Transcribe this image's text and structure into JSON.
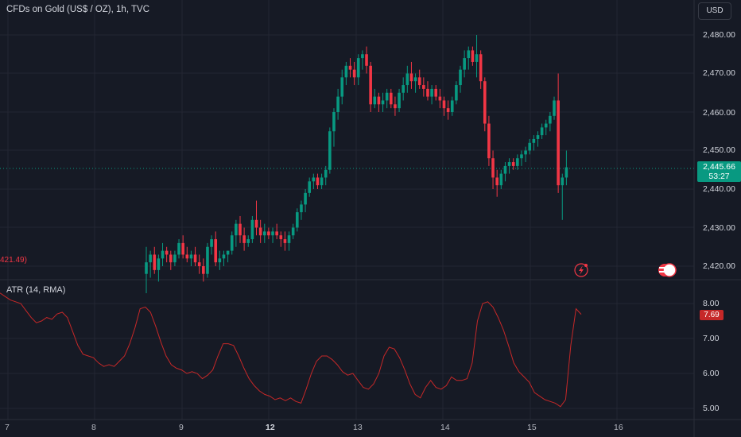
{
  "header": {
    "title": "CFDs on Gold (US$ / OZ), 1h, TVC",
    "currency_button": "USD"
  },
  "price_axis": {
    "ticks": [
      "2,480.00",
      "2,470.00",
      "2,460.00",
      "2,450.00",
      "2,440.00",
      "2,430.00",
      "2,420.00"
    ]
  },
  "last_price": {
    "value": "2,445.66",
    "countdown": "53:27"
  },
  "offscreen_label": "421.49)",
  "indicator": {
    "title": "ATR (14, RMA)",
    "ticks": [
      "8.00",
      "7.00",
      "6.00",
      "5.00"
    ],
    "current_value": "7.69"
  },
  "time_axis": {
    "labels": [
      "7",
      "8",
      "9",
      "12",
      "13",
      "14",
      "15",
      "16"
    ]
  },
  "colors": {
    "up": "#089981",
    "down": "#f23645",
    "atr_line": "#c62828",
    "background": "#161a25"
  },
  "icons": [
    "lightning-event-icon",
    "us-flag-event-icon"
  ],
  "chart_data": [
    {
      "type": "candlestick",
      "title": "CFDs on Gold (US$ / OZ), 1h, TVC",
      "yrange": [
        2417,
        2483
      ],
      "candles": [
        [
          2418,
          2425,
          2413,
          2421
        ],
        [
          2421,
          2424,
          2417,
          2423
        ],
        [
          2423,
          2425,
          2418,
          2419
        ],
        [
          2419,
          2423,
          2416,
          2422
        ],
        [
          2422,
          2426,
          2420,
          2424
        ],
        [
          2424,
          2425,
          2421,
          2423
        ],
        [
          2423,
          2424,
          2419,
          2421
        ],
        [
          2421,
          2424,
          2420,
          2423
        ],
        [
          2423,
          2427,
          2422,
          2426
        ],
        [
          2426,
          2428,
          2422,
          2423
        ],
        [
          2423,
          2425,
          2421,
          2422
        ],
        [
          2422,
          2424,
          2420,
          2423
        ],
        [
          2423,
          2425,
          2420,
          2421
        ],
        [
          2421,
          2423,
          2418,
          2420
        ],
        [
          2420,
          2422,
          2416,
          2418
        ],
        [
          2418,
          2426,
          2417,
          2425
        ],
        [
          2425,
          2428,
          2423,
          2427
        ],
        [
          2427,
          2429,
          2420,
          2421
        ],
        [
          2421,
          2424,
          2419,
          2422
        ],
        [
          2422,
          2424,
          2420,
          2423
        ],
        [
          2423,
          2424,
          2421,
          2424
        ],
        [
          2424,
          2429,
          2423,
          2428
        ],
        [
          2428,
          2432,
          2425,
          2431
        ],
        [
          2431,
          2433,
          2426,
          2428
        ],
        [
          2428,
          2430,
          2424,
          2426
        ],
        [
          2426,
          2428,
          2425,
          2427
        ],
        [
          2427,
          2433,
          2426,
          2432
        ],
        [
          2432,
          2437,
          2428,
          2430
        ],
        [
          2430,
          2432,
          2426,
          2428
        ],
        [
          2428,
          2431,
          2426,
          2429
        ],
        [
          2429,
          2430,
          2427,
          2428
        ],
        [
          2428,
          2430,
          2426,
          2429
        ],
        [
          2429,
          2431,
          2427,
          2428
        ],
        [
          2428,
          2429,
          2425,
          2427
        ],
        [
          2427,
          2429,
          2424,
          2426
        ],
        [
          2426,
          2429,
          2424,
          2428
        ],
        [
          2428,
          2431,
          2427,
          2430
        ],
        [
          2430,
          2435,
          2429,
          2434
        ],
        [
          2434,
          2437,
          2432,
          2436
        ],
        [
          2436,
          2440,
          2434,
          2439
        ],
        [
          2439,
          2443,
          2438,
          2442
        ],
        [
          2442,
          2444,
          2440,
          2443
        ],
        [
          2443,
          2444,
          2440,
          2441
        ],
        [
          2441,
          2444,
          2440,
          2443
        ],
        [
          2443,
          2446,
          2441,
          2445
        ],
        [
          2445,
          2456,
          2444,
          2455
        ],
        [
          2455,
          2461,
          2451,
          2460
        ],
        [
          2460,
          2466,
          2458,
          2464
        ],
        [
          2464,
          2471,
          2462,
          2469
        ],
        [
          2469,
          2473,
          2467,
          2472
        ],
        [
          2472,
          2474,
          2469,
          2471
        ],
        [
          2471,
          2473,
          2467,
          2469
        ],
        [
          2469,
          2475,
          2467,
          2474
        ],
        [
          2474,
          2476,
          2471,
          2475
        ],
        [
          2475,
          2477,
          2470,
          2472
        ],
        [
          2472,
          2473,
          2460,
          2462
        ],
        [
          2462,
          2466,
          2461,
          2464
        ],
        [
          2464,
          2465,
          2460,
          2462
        ],
        [
          2462,
          2465,
          2460,
          2463
        ],
        [
          2463,
          2466,
          2461,
          2465
        ],
        [
          2465,
          2466,
          2461,
          2462
        ],
        [
          2462,
          2464,
          2459,
          2461
        ],
        [
          2461,
          2466,
          2460,
          2465
        ],
        [
          2465,
          2469,
          2463,
          2467
        ],
        [
          2467,
          2472,
          2465,
          2470
        ],
        [
          2470,
          2473,
          2466,
          2468
        ],
        [
          2468,
          2470,
          2465,
          2469
        ],
        [
          2469,
          2471,
          2466,
          2467
        ],
        [
          2467,
          2469,
          2464,
          2466
        ],
        [
          2466,
          2468,
          2463,
          2464
        ],
        [
          2464,
          2467,
          2462,
          2466
        ],
        [
          2466,
          2467,
          2463,
          2464
        ],
        [
          2464,
          2466,
          2461,
          2463
        ],
        [
          2463,
          2464,
          2459,
          2461
        ],
        [
          2461,
          2463,
          2458,
          2460
        ],
        [
          2460,
          2464,
          2459,
          2463
        ],
        [
          2463,
          2468,
          2462,
          2467
        ],
        [
          2467,
          2472,
          2465,
          2471
        ],
        [
          2471,
          2476,
          2469,
          2474
        ],
        [
          2474,
          2477,
          2471,
          2476
        ],
        [
          2476,
          2477,
          2472,
          2473
        ],
        [
          2473,
          2480,
          2469,
          2475
        ],
        [
          2475,
          2476,
          2466,
          2468
        ],
        [
          2468,
          2469,
          2455,
          2457
        ],
        [
          2457,
          2459,
          2446,
          2448
        ],
        [
          2448,
          2450,
          2440,
          2443
        ],
        [
          2443,
          2445,
          2438,
          2441
        ],
        [
          2441,
          2445,
          2440,
          2444
        ],
        [
          2444,
          2447,
          2442,
          2446
        ],
        [
          2446,
          2448,
          2444,
          2447
        ],
        [
          2447,
          2448,
          2445,
          2446
        ],
        [
          2446,
          2449,
          2445,
          2448
        ],
        [
          2448,
          2450,
          2446,
          2449
        ],
        [
          2449,
          2451,
          2447,
          2450
        ],
        [
          2450,
          2453,
          2449,
          2452
        ],
        [
          2452,
          2454,
          2450,
          2453
        ],
        [
          2453,
          2455,
          2451,
          2454
        ],
        [
          2454,
          2457,
          2453,
          2456
        ],
        [
          2456,
          2458,
          2454,
          2457
        ],
        [
          2457,
          2460,
          2455,
          2459
        ],
        [
          2459,
          2464,
          2458,
          2463
        ],
        [
          2463,
          2470,
          2439,
          2441
        ],
        [
          2441,
          2444,
          2432,
          2443
        ],
        [
          2443,
          2450,
          2441,
          2445.66
        ]
      ]
    },
    {
      "type": "line",
      "title": "ATR (14, RMA)",
      "yrange": [
        4.85,
        8.3
      ],
      "values": [
        8.3,
        8.2,
        8.1,
        8.05,
        8.0,
        7.8,
        7.6,
        7.45,
        7.5,
        7.6,
        7.55,
        7.7,
        7.75,
        7.6,
        7.2,
        6.8,
        6.55,
        6.5,
        6.45,
        6.3,
        6.2,
        6.25,
        6.2,
        6.35,
        6.5,
        6.85,
        7.3,
        7.85,
        7.9,
        7.75,
        7.35,
        6.9,
        6.5,
        6.25,
        6.15,
        6.1,
        6.0,
        6.05,
        6.0,
        5.85,
        5.95,
        6.1,
        6.5,
        6.85,
        6.85,
        6.8,
        6.5,
        6.15,
        5.85,
        5.65,
        5.5,
        5.4,
        5.35,
        5.25,
        5.3,
        5.22,
        5.3,
        5.2,
        5.15,
        5.55,
        6.0,
        6.35,
        6.5,
        6.5,
        6.4,
        6.25,
        6.05,
        5.95,
        6.0,
        5.8,
        5.6,
        5.55,
        5.7,
        6.0,
        6.5,
        6.75,
        6.7,
        6.45,
        6.1,
        5.7,
        5.4,
        5.3,
        5.6,
        5.8,
        5.6,
        5.55,
        5.65,
        5.9,
        5.8,
        5.8,
        5.85,
        6.3,
        7.5,
        8.0,
        8.05,
        7.9,
        7.6,
        7.25,
        6.8,
        6.3,
        6.05,
        5.9,
        5.75,
        5.45,
        5.35,
        5.25,
        5.2,
        5.15,
        5.05,
        5.25,
        6.8,
        7.85,
        7.69
      ]
    }
  ]
}
